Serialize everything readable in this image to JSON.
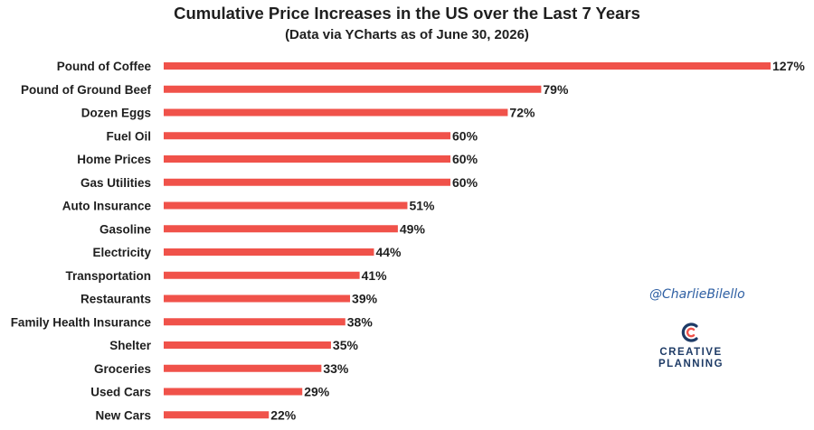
{
  "chart_data": {
    "type": "bar",
    "orientation": "horizontal",
    "title": "Cumulative Price Increases in the US over the Last 7 Years",
    "subtitle": "(Data via YCharts as of June 30, 2026)",
    "categories": [
      "Pound of Coffee",
      "Pound of Ground Beef",
      "Dozen Eggs",
      "Fuel Oil",
      "Home Prices",
      "Gas Utilities",
      "Auto Insurance",
      "Gasoline",
      "Electricity",
      "Transportation",
      "Restaurants",
      "Family Health Insurance",
      "Shelter",
      "Groceries",
      "Used Cars",
      "New Cars"
    ],
    "values": [
      127,
      79,
      72,
      60,
      60,
      60,
      51,
      49,
      44,
      41,
      39,
      38,
      35,
      33,
      29,
      22
    ],
    "value_labels": [
      "127%",
      "79%",
      "72%",
      "60%",
      "60%",
      "60%",
      "51%",
      "49%",
      "44%",
      "41%",
      "39%",
      "38%",
      "35%",
      "33%",
      "29%",
      "22%"
    ],
    "unit": "%",
    "bar_color": "#f0524a",
    "grid": false,
    "legend": "none",
    "xlim": [
      0,
      127
    ]
  },
  "watermark": {
    "handle": "@CharlieBilello",
    "brand_line1": "CREATIVE",
    "brand_line2": "PLANNING",
    "brand_color": "#1e3b66",
    "accent_color": "#f0524a"
  }
}
